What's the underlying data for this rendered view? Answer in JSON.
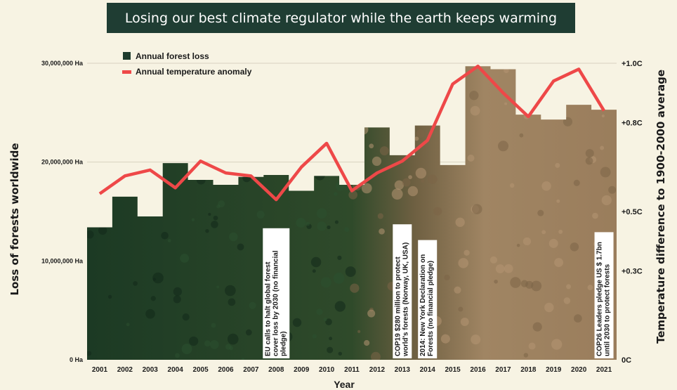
{
  "title": "Losing our best climate regulator while the earth keeps warming",
  "chart_data": {
    "type": "bar",
    "categories": [
      "2001",
      "2002",
      "2003",
      "2004",
      "2005",
      "2006",
      "2007",
      "2008",
      "2009",
      "2010",
      "2011",
      "2012",
      "2013",
      "2014",
      "2015",
      "2016",
      "2017",
      "2018",
      "2019",
      "2020",
      "2021"
    ],
    "series": [
      {
        "name": "Annual forest loss",
        "type": "bar",
        "axis": "left",
        "color": "#1e3b2d",
        "values": [
          13400000,
          16500000,
          14500000,
          19900000,
          18200000,
          17700000,
          18500000,
          18700000,
          17100000,
          18600000,
          17700000,
          23500000,
          20700000,
          23700000,
          19700000,
          29700000,
          29400000,
          24800000,
          24300000,
          25800000,
          25300000
        ]
      },
      {
        "name": "Annual temperature anomaly",
        "type": "line",
        "axis": "right",
        "color": "#ee4848",
        "values": [
          0.56,
          0.62,
          0.64,
          0.58,
          0.67,
          0.63,
          0.62,
          0.54,
          0.65,
          0.73,
          0.57,
          0.63,
          0.67,
          0.74,
          0.93,
          0.99,
          0.9,
          0.82,
          0.94,
          0.98,
          0.84
        ]
      }
    ],
    "left_axis": {
      "label": "Loss of forests worldwide",
      "min": 0,
      "max": 30000000,
      "ticks": [
        {
          "value": 0,
          "label": "0 Ha"
        },
        {
          "value": 10000000,
          "label": "10,000,000 Ha"
        },
        {
          "value": 20000000,
          "label": "20,000,000 Ha"
        },
        {
          "value": 30000000,
          "label": "30,000,000 Ha"
        }
      ]
    },
    "right_axis": {
      "label": "Temperature difference to 1900-2000 average",
      "min": 0,
      "max": 1.0,
      "ticks": [
        {
          "value": 0,
          "label": "0C"
        },
        {
          "value": 0.3,
          "label": "+0.3C"
        },
        {
          "value": 0.5,
          "label": "+0.5C"
        },
        {
          "value": 0.8,
          "label": "+0.8C"
        },
        {
          "value": 1.0,
          "label": "+1.0C"
        }
      ]
    },
    "xlabel": "Year",
    "grid": true,
    "legend_position": "top-left",
    "annotations": [
      {
        "year": "2008",
        "text": "EU calls to halt global forest cover loss by 2030 (no financial pledge)"
      },
      {
        "year": "2013",
        "text": "COP19 $280 million to protect world's forests (Norway, UK, USA)"
      },
      {
        "year": "2014",
        "text": "2014: New York Declaration on Forests (no financial pledge)"
      },
      {
        "year": "2021",
        "text": "COP26 Leaders pledge US $ 1.7bn until 2030 to protect forests"
      }
    ]
  }
}
